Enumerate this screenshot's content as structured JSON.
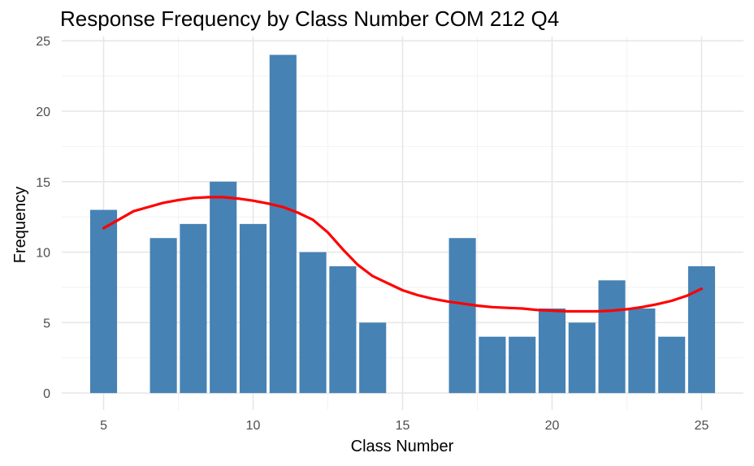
{
  "chart_data": {
    "type": "bar",
    "title": "Response Frequency by Class Number COM 212 Q4",
    "xlabel": "Class Number",
    "ylabel": "Frequency",
    "x": [
      5,
      7,
      8,
      9,
      10,
      11,
      12,
      13,
      14,
      17,
      18,
      19,
      20,
      21,
      22,
      23,
      24,
      25
    ],
    "values": [
      13,
      11,
      12,
      15,
      12,
      24,
      10,
      9,
      5,
      11,
      4,
      4,
      6,
      5,
      8,
      6,
      4,
      9
    ],
    "xlim": [
      3.6,
      26.4
    ],
    "ylim": [
      -1.2,
      25.3
    ],
    "x_ticks": [
      "5",
      "10",
      "15",
      "20",
      "25"
    ],
    "y_ticks": [
      "0",
      "5",
      "10",
      "15",
      "20",
      "25"
    ],
    "bar_color": "#4682B4",
    "smooth_color": "#FF0000",
    "smooth_curve": {
      "x": [
        5,
        5.5,
        6,
        6.5,
        7,
        7.5,
        8,
        8.5,
        9,
        9.5,
        10,
        10.5,
        11,
        11.5,
        12,
        12.5,
        13,
        13.5,
        14,
        14.5,
        15,
        15.5,
        16,
        16.5,
        17,
        17.5,
        18,
        18.5,
        19,
        19.5,
        20,
        20.5,
        21,
        21.5,
        22,
        22.5,
        23,
        23.5,
        24,
        24.5,
        25
      ],
      "y": [
        11.7,
        12.3,
        12.9,
        13.2,
        13.5,
        13.7,
        13.85,
        13.9,
        13.9,
        13.8,
        13.65,
        13.45,
        13.2,
        12.8,
        12.3,
        11.4,
        10.2,
        9.1,
        8.3,
        7.8,
        7.3,
        6.95,
        6.7,
        6.5,
        6.35,
        6.2,
        6.1,
        6.05,
        6.0,
        5.9,
        5.85,
        5.8,
        5.8,
        5.8,
        5.85,
        5.95,
        6.1,
        6.3,
        6.55,
        6.9,
        7.4
      ]
    },
    "grid": true,
    "legend": "none"
  }
}
